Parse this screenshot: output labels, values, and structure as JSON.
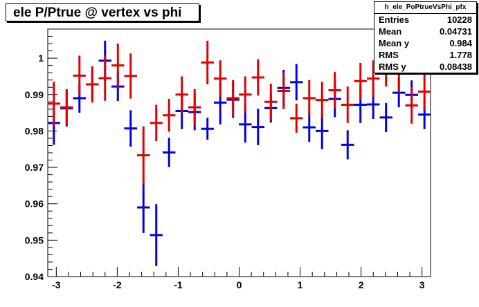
{
  "chart_data": {
    "type": "scatter",
    "title": "ele P/Ptrue @ vertex vs phi",
    "xlim": [
      -3.14,
      3.14
    ],
    "ylim": [
      0.94,
      1.008
    ],
    "x_ticks": [
      -3,
      -2,
      -1,
      0,
      1,
      2,
      3
    ],
    "y_ticks": [
      0.94,
      0.95,
      0.96,
      0.97,
      0.98,
      0.99,
      1
    ],
    "y_tick_labels": [
      "0.94",
      "0.95",
      "0.96",
      "0.97",
      "0.98",
      "0.99",
      "1"
    ],
    "x_tick_labels": [
      "-3",
      "-2",
      "-1",
      "0",
      "1",
      "2",
      "3"
    ],
    "bin_half_width": 0.1047,
    "grid": false,
    "legend": "none",
    "series": [
      {
        "color": "#e00000",
        "x": [
          -3.04,
          -2.83,
          -2.62,
          -2.41,
          -2.2,
          -1.99,
          -1.78,
          -1.57,
          -1.36,
          -1.15,
          -0.94,
          -0.73,
          -0.52,
          -0.31,
          -0.1,
          0.1,
          0.31,
          0.52,
          0.73,
          0.94,
          1.15,
          1.36,
          1.57,
          1.78,
          1.99,
          2.2,
          2.41,
          2.62,
          2.83,
          3.04
        ],
        "y": [
          0.9875,
          0.9865,
          0.9952,
          0.9928,
          0.9945,
          0.998,
          0.9951,
          0.9733,
          0.9822,
          0.9843,
          0.99,
          0.9865,
          0.9988,
          0.9944,
          0.989,
          0.99,
          0.9947,
          0.988,
          0.991,
          0.9835,
          0.989,
          0.9885,
          0.9912,
          0.9872,
          0.9937,
          0.9944,
          0.9982,
          0.9958,
          0.987,
          0.9908
        ],
        "err": [
          0.006,
          0.005,
          0.0055,
          0.005,
          0.0062,
          0.006,
          0.0062,
          0.008,
          0.005,
          0.0045,
          0.005,
          0.005,
          0.006,
          0.005,
          0.005,
          0.005,
          0.005,
          0.005,
          0.005,
          0.004,
          0.005,
          0.005,
          0.005,
          0.005,
          0.005,
          0.005,
          0.006,
          0.005,
          0.005,
          0.005
        ]
      },
      {
        "color": "#0000e0",
        "x": [
          -3.04,
          -2.83,
          -2.62,
          -2.41,
          -2.2,
          -1.99,
          -1.78,
          -1.57,
          -1.36,
          -1.15,
          -0.94,
          -0.73,
          -0.52,
          -0.31,
          -0.1,
          0.1,
          0.31,
          0.52,
          0.73,
          0.94,
          1.15,
          1.36,
          1.57,
          1.78,
          1.99,
          2.2,
          2.41,
          2.62,
          2.83,
          3.04
        ],
        "y": [
          0.9822,
          0.9862,
          0.989,
          0.9928,
          0.9993,
          0.9922,
          0.9807,
          0.959,
          0.9514,
          0.9741,
          0.9855,
          0.9852,
          0.9806,
          0.9878,
          0.9886,
          0.9818,
          0.9811,
          0.9863,
          0.9918,
          0.9934,
          0.981,
          0.98,
          0.9888,
          0.9762,
          0.9872,
          0.9873,
          0.9837,
          0.9905,
          0.9899,
          0.9845
        ],
        "err": [
          0.006,
          0.005,
          0.004,
          0.004,
          0.0055,
          0.004,
          0.005,
          0.007,
          0.0085,
          0.004,
          0.005,
          0.005,
          0.003,
          0.006,
          0.005,
          0.005,
          0.005,
          0.004,
          0.005,
          0.005,
          0.004,
          0.005,
          0.005,
          0.004,
          0.005,
          0.004,
          0.004,
          0.004,
          0.004,
          0.004
        ]
      }
    ]
  },
  "stats": {
    "name": "h_ele_PoPtrueVsPhi_pfx",
    "rows": [
      {
        "label": "Entries",
        "value": "10228"
      },
      {
        "label": "Mean",
        "value": "0.04731"
      },
      {
        "label": "Mean y",
        "value": "0.984"
      },
      {
        "label": "RMS",
        "value": "1.778"
      },
      {
        "label": "RMS y",
        "value": "0.08438"
      }
    ]
  }
}
